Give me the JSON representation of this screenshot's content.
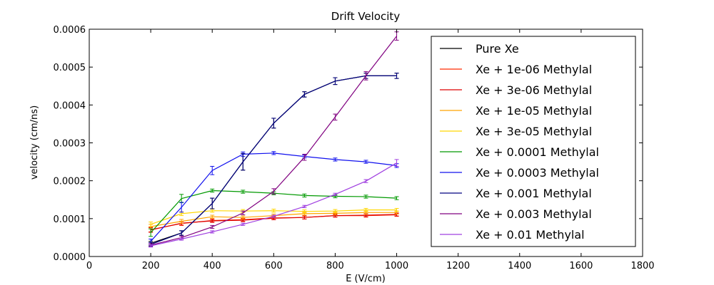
{
  "chart_data": {
    "type": "line",
    "title": "Drift Velocity",
    "xlabel": "E (V/cm)",
    "ylabel": "velocity (cm/ns)",
    "xlim": [
      0,
      1800
    ],
    "ylim": [
      0,
      0.0006
    ],
    "xticks": [
      "0",
      "200",
      "400",
      "600",
      "800",
      "1000",
      "1200",
      "1400",
      "1600",
      "1800"
    ],
    "yticks": [
      "0.0000",
      "0.0001",
      "0.0002",
      "0.0003",
      "0.0004",
      "0.0005",
      "0.0006"
    ],
    "grid": false,
    "legend_position": "top-right",
    "x": [
      200,
      300,
      400,
      500,
      600,
      700,
      800,
      900,
      1000
    ],
    "series": [
      {
        "name": "Pure Xe",
        "color": "#000000",
        "values": [
          3.5e-05,
          6.2e-05,
          0.00014,
          0.00025,
          0.000352,
          0.000428,
          0.000463,
          0.000477,
          0.000477
        ],
        "errors": [
          5e-06,
          6e-06,
          1.4e-05,
          2.2e-05,
          1.3e-05,
          7e-06,
          9e-06,
          7e-06,
          7e-06
        ]
      },
      {
        "name": "Xe + 1e-06 Methylal",
        "color": "#ff2a00",
        "values": [
          7.1e-05,
          8.7e-05,
          9.5e-05,
          9.7e-05,
          0.000102,
          0.000103,
          0.000108,
          0.000108,
          0.00011
        ],
        "errors": [
          6e-06,
          5e-06,
          4e-06,
          4e-06,
          4e-06,
          4e-06,
          4e-06,
          4e-06,
          4e-06
        ]
      },
      {
        "name": "Xe + 3e-06 Methylal",
        "color": "#dd0000",
        "values": [
          7e-05,
          8.8e-05,
          9.4e-05,
          9.6e-05,
          0.000101,
          0.000103,
          0.000108,
          0.000109,
          0.000111
        ],
        "errors": [
          6e-06,
          5e-06,
          4e-06,
          4e-06,
          4e-06,
          4e-06,
          4e-06,
          4e-06,
          4e-06
        ]
      },
      {
        "name": "Xe + 1e-05 Methylal",
        "color": "#ffa500",
        "values": [
          7.9e-05,
          9.3e-05,
          0.000105,
          0.000103,
          0.000108,
          0.000113,
          0.000114,
          0.000116,
          0.000116
        ],
        "errors": [
          6e-06,
          5e-06,
          4e-06,
          4e-06,
          4e-06,
          4e-06,
          4e-06,
          4e-06,
          4e-06
        ]
      },
      {
        "name": "Xe + 3e-05 Methylal",
        "color": "#ffd700",
        "values": [
          8.5e-05,
          0.000113,
          0.000121,
          0.00012,
          0.000121,
          0.000119,
          0.00012,
          0.000123,
          0.000123
        ],
        "errors": [
          6e-06,
          5e-06,
          4e-06,
          4e-06,
          4e-06,
          4e-06,
          4e-06,
          4e-06,
          4e-06
        ]
      },
      {
        "name": "Xe + 0.0001 Methylal",
        "color": "#009900",
        "values": [
          6.3e-05,
          0.000153,
          0.000174,
          0.000171,
          0.000167,
          0.000161,
          0.000159,
          0.000158,
          0.000154
        ],
        "errors": [
          1e-05,
          1.1e-05,
          4e-06,
          4e-06,
          4e-06,
          4e-06,
          4e-06,
          4e-06,
          4e-06
        ]
      },
      {
        "name": "Xe + 0.0003 Methylal",
        "color": "#1010ee",
        "values": [
          4e-05,
          0.00013,
          0.000227,
          0.00027,
          0.000273,
          0.000264,
          0.000256,
          0.00025,
          0.00024
        ],
        "errors": [
          6e-06,
          1.3e-05,
          1.1e-05,
          6e-06,
          4e-06,
          4e-06,
          4e-06,
          4e-06,
          5e-06
        ]
      },
      {
        "name": "Xe + 0.001 Methylal",
        "color": "#000080",
        "values": [
          3.2e-05,
          6.2e-05,
          0.00014,
          0.00025,
          0.000352,
          0.000428,
          0.000463,
          0.000477,
          0.000477
        ],
        "errors": [
          5e-06,
          6e-06,
          1.4e-05,
          2.2e-05,
          1.3e-05,
          7e-06,
          9e-06,
          7e-06,
          7e-06
        ]
      },
      {
        "name": "Xe + 0.003 Methylal",
        "color": "#800080",
        "values": [
          3e-05,
          5e-05,
          7.8e-05,
          0.000115,
          0.000172,
          0.000262,
          0.000368,
          0.000477,
          0.000582
        ],
        "errors": [
          4e-06,
          4e-06,
          4e-06,
          5e-06,
          7e-06,
          8e-06,
          8e-06,
          1.1e-05,
          1.1e-05
        ]
      },
      {
        "name": "Xe + 0.01 Methylal",
        "color": "#a040e0",
        "values": [
          2.8e-05,
          4.6e-05,
          6.5e-05,
          8.5e-05,
          0.000106,
          0.000132,
          0.000164,
          0.000199,
          0.000247
        ],
        "errors": [
          3e-06,
          3e-06,
          3e-06,
          3e-06,
          3e-06,
          3e-06,
          3e-06,
          4e-06,
          9e-06
        ]
      }
    ]
  }
}
